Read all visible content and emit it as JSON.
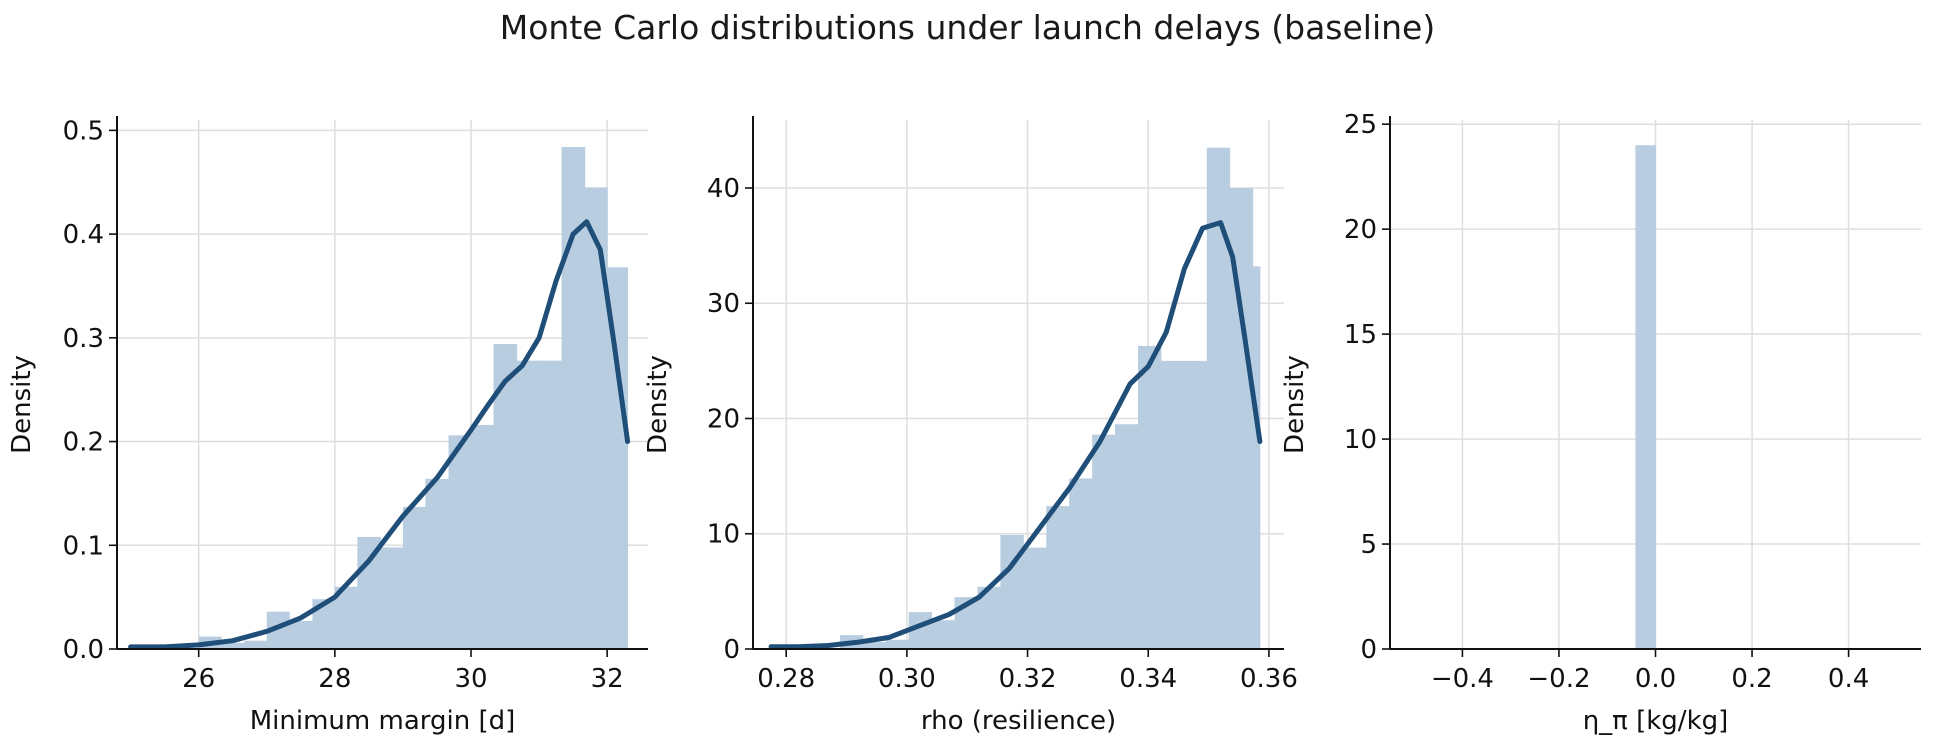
{
  "title": "Monte Carlo distributions under launch delays (baseline)",
  "colors": {
    "bar": "#b9cde0",
    "kde": "#1f4e79",
    "grid": "#dedede"
  },
  "chart_data": [
    {
      "type": "bar",
      "xlabel": "Minimum margin [d]",
      "ylabel": "Density",
      "xlim": [
        24.8,
        32.6
      ],
      "ylim": [
        0,
        0.51
      ],
      "xticks": [
        26,
        28,
        30,
        32
      ],
      "xtick_labels": [
        "26",
        "28",
        "30",
        "32"
      ],
      "yticks": [
        0,
        0.1,
        0.2,
        0.3,
        0.4,
        0.5
      ],
      "ytick_labels": [
        "0.0",
        "0.1",
        "0.2",
        "0.3",
        "0.4",
        "0.5"
      ],
      "grid": true,
      "histogram": {
        "edges": [
          25.0,
          25.33,
          25.67,
          26.0,
          26.33,
          26.67,
          27.0,
          27.33,
          27.67,
          28.0,
          28.33,
          28.67,
          29.0,
          29.33,
          29.67,
          30.0,
          30.33,
          30.67,
          31.0,
          31.33,
          31.67,
          32.0,
          32.3
        ],
        "values": [
          0.0,
          0.0,
          0.0,
          0.012,
          0.006,
          0.008,
          0.036,
          0.027,
          0.048,
          0.06,
          0.108,
          0.098,
          0.137,
          0.164,
          0.206,
          0.216,
          0.294,
          0.278,
          0.278,
          0.484,
          0.445,
          0.368
        ]
      },
      "kde": {
        "x": [
          25.0,
          25.5,
          26.0,
          26.5,
          27.0,
          27.5,
          28.0,
          28.5,
          29.0,
          29.5,
          30.0,
          30.25,
          30.5,
          30.75,
          31.0,
          31.25,
          31.5,
          31.7,
          31.9,
          32.1,
          32.3
        ],
        "y": [
          0.002,
          0.002,
          0.004,
          0.008,
          0.017,
          0.03,
          0.05,
          0.085,
          0.128,
          0.165,
          0.211,
          0.235,
          0.258,
          0.273,
          0.3,
          0.355,
          0.4,
          0.412,
          0.385,
          0.295,
          0.2
        ]
      }
    },
    {
      "type": "bar",
      "xlabel": "rho (resilience)",
      "ylabel": "Density",
      "xlim": [
        0.2745,
        0.3625
      ],
      "ylim": [
        0,
        45.9
      ],
      "xticks": [
        0.28,
        0.3,
        0.32,
        0.34,
        0.36
      ],
      "xtick_labels": [
        "0.28",
        "0.30",
        "0.32",
        "0.34",
        "0.36"
      ],
      "yticks": [
        0,
        10,
        20,
        30,
        40
      ],
      "ytick_labels": [
        "0",
        "10",
        "20",
        "30",
        "40"
      ],
      "grid": true,
      "histogram": {
        "edges": [
          0.2775,
          0.2813,
          0.2851,
          0.2889,
          0.2927,
          0.2965,
          0.3003,
          0.3041,
          0.3079,
          0.3117,
          0.3155,
          0.3193,
          0.3231,
          0.3269,
          0.3307,
          0.3345,
          0.3383,
          0.3421,
          0.3459,
          0.3497,
          0.3535,
          0.3573,
          0.3585
        ],
        "values": [
          0.0,
          0.0,
          0.0,
          1.2,
          0.6,
          0.8,
          3.2,
          2.5,
          4.5,
          5.4,
          9.9,
          8.8,
          12.4,
          14.8,
          18.6,
          19.5,
          26.3,
          25.0,
          25.0,
          43.5,
          40.0,
          33.2
        ]
      },
      "kde": {
        "x": [
          0.2775,
          0.282,
          0.287,
          0.292,
          0.297,
          0.302,
          0.307,
          0.312,
          0.317,
          0.322,
          0.327,
          0.332,
          0.337,
          0.34,
          0.343,
          0.346,
          0.349,
          0.352,
          0.354,
          0.356,
          0.3585
        ],
        "y": [
          0.2,
          0.2,
          0.3,
          0.6,
          1.0,
          2.0,
          3.0,
          4.5,
          7.0,
          10.5,
          14.0,
          18.0,
          23.0,
          24.5,
          27.5,
          33.0,
          36.5,
          37.0,
          34.0,
          27.0,
          18.0
        ]
      }
    },
    {
      "type": "bar",
      "xlabel": "η_π [kg/kg]",
      "ylabel": "Density",
      "xlim": [
        -0.55,
        0.55
      ],
      "ylim": [
        0,
        25.2
      ],
      "xticks": [
        -0.4,
        -0.2,
        0.0,
        0.2,
        0.4
      ],
      "xtick_labels": [
        "−0.4",
        "−0.2",
        "0.0",
        "0.2",
        "0.4"
      ],
      "yticks": [
        0,
        5,
        10,
        15,
        20,
        25
      ],
      "ytick_labels": [
        "0",
        "5",
        "10",
        "15",
        "20",
        "25"
      ],
      "grid": true,
      "histogram": {
        "edges": [
          -0.0417,
          0.0
        ],
        "values": [
          24.0
        ]
      },
      "kde": null
    }
  ]
}
